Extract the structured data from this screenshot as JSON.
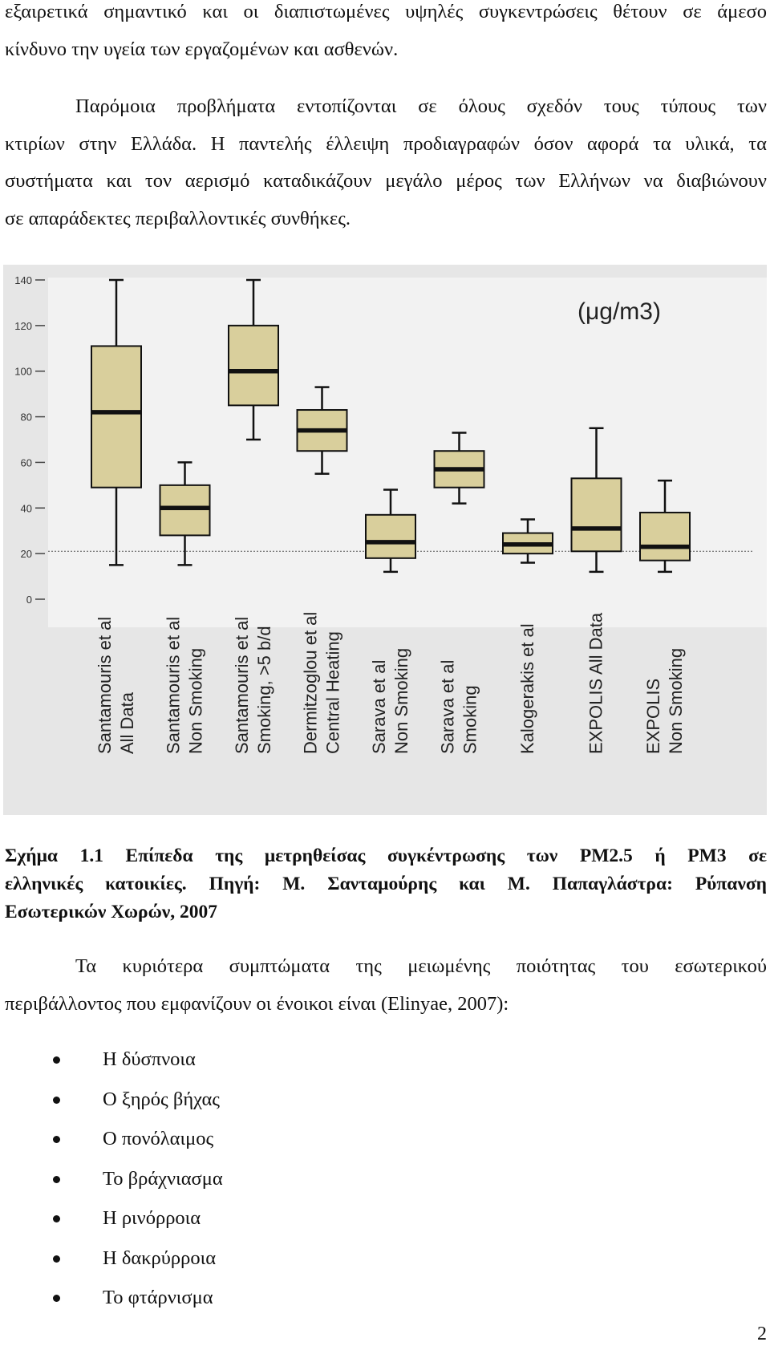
{
  "paragraph_top": [
    "εξαιρετικά σημαντικό και οι διαπιστωμένες υψηλές συγκεντρώσεις θέτουν σε άμεσο",
    "κίνδυνο την υγεία των εργαζομένων και ασθενών."
  ],
  "paragraph_2": [
    "Παρόμοια προβλήματα εντοπίζονται σε όλους σχεδόν τους τύπους των",
    "κτιρίων στην Ελλάδα. Η παντελής έλλειψη προδιαγραφών όσον αφορά τα υλικά, τα",
    "συστήματα και τον αερισμό καταδικάζουν μεγάλο μέρος των Ελλήνων να διαβιώνουν",
    "σε απαράδεκτες περιβαλλοντικές συνθήκες."
  ],
  "chart_data": {
    "type": "boxplot",
    "unit_label": "(μg/m3)",
    "ylim": [
      0,
      140
    ],
    "yticks": [
      0,
      20,
      40,
      60,
      80,
      100,
      120,
      140
    ],
    "reference_line": 21,
    "categories": [
      [
        "Santamouris et al",
        "All Data"
      ],
      [
        "Santamouris et al",
        "Non Smoking"
      ],
      [
        "Santamouris et al",
        "Smoking, >5 b/d"
      ],
      [
        "Dermitzoglou et al",
        "Central Heating"
      ],
      [
        "Sarava et al",
        "Non Smoking"
      ],
      [
        "Sarava et al",
        "Smoking"
      ],
      [
        "Kalogerakis et al"
      ],
      [
        "EXPOLIS All Data"
      ],
      [
        "EXPOLIS",
        "Non Smoking"
      ]
    ],
    "boxes": [
      {
        "min": 15,
        "q1": 49,
        "median": 82,
        "q3": 111,
        "max": 140
      },
      {
        "min": 15,
        "q1": 28,
        "median": 40,
        "q3": 50,
        "max": 60
      },
      {
        "min": 70,
        "q1": 85,
        "median": 100,
        "q3": 120,
        "max": 140
      },
      {
        "min": 55,
        "q1": 65,
        "median": 74,
        "q3": 83,
        "max": 93
      },
      {
        "min": 12,
        "q1": 18,
        "median": 25,
        "q3": 37,
        "max": 48
      },
      {
        "min": 42,
        "q1": 49,
        "median": 57,
        "q3": 65,
        "max": 73
      },
      {
        "min": 16,
        "q1": 20,
        "median": 24,
        "q3": 29,
        "max": 35
      },
      {
        "min": 12,
        "q1": 21,
        "median": 31,
        "q3": 53,
        "max": 75
      },
      {
        "min": 12,
        "q1": 17,
        "median": 23,
        "q3": 38,
        "max": 52
      }
    ],
    "colors": {
      "box": "#d9cf9c",
      "stroke": "#111111",
      "background": "#e6e6e6",
      "reference": "#555555"
    }
  },
  "caption": [
    "Σχήμα 1.1 Επίπεδα της μετρηθείσας συγκέντρωσης των PM2.5 ή PM3 σε",
    "ελληνικές κατοικίες. Πηγή: Μ. Σανταμούρης και Μ. Παπαγλάστρα: Ρύπανση",
    "Εσωτερικών Χωρών, 2007"
  ],
  "paragraph_3": [
    "Τα κυριότερα συμπτώματα της μειωμένης ποιότητας του εσωτερικού",
    "περιβάλλοντος που εμφανίζουν οι ένοικοι είναι (Elinyae, 2007):"
  ],
  "symptoms": [
    "Η δύσπνοια",
    "Ο ξηρός βήχας",
    "Ο πονόλαιμος",
    "Το βράχνιασμα",
    "Η ρινόρροια",
    "Η δακρύρροια",
    "Το φτάρνισμα"
  ],
  "page_number": "2"
}
